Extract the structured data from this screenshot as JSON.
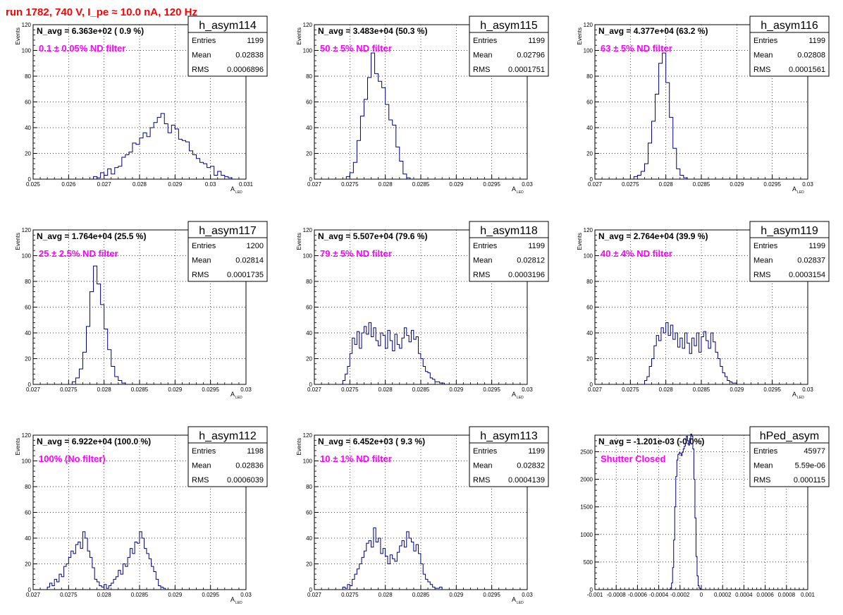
{
  "run_title": "run 1782,   740 V, I_pe ≈ 10.0 nA, 120 Hz",
  "colors": {
    "title": "#ff0000",
    "annotation": "#ff00ff",
    "histogram": "#000080",
    "grid": "#000000"
  },
  "chart_data": [
    {
      "type": "histogram",
      "title": "h_asym114",
      "nav_text": "N_avg = 6.363e+02 ( 0.9 %)",
      "annotation": "0.1 ± 0.05% ND filter",
      "stats": {
        "labels": [
          "Entries",
          "Mean",
          "RMS"
        ],
        "values": [
          "1199",
          "0.02838",
          "0.0006896"
        ]
      },
      "xlabel": "A",
      "xlabel_sub": "LED",
      "ylabel": "Events",
      "xlim": [
        0.025,
        0.031
      ],
      "ylim": [
        0,
        120
      ],
      "xticks": [
        0.025,
        0.026,
        0.027,
        0.028,
        0.029,
        0.03,
        0.031
      ],
      "xtick_labels": [
        "0.025",
        "0.026",
        "0.027",
        "0.028",
        "0.029",
        "0.03",
        "0.031"
      ],
      "yticks": [
        0,
        20,
        40,
        60,
        80,
        100,
        120
      ],
      "ytick_labels": [
        "0",
        "20",
        "40",
        "60",
        "80",
        "100",
        "120"
      ],
      "grid": true,
      "bin_start": 0.0267,
      "bin_width": 0.0001,
      "counts": [
        2,
        1,
        5,
        3,
        8,
        4,
        9,
        10,
        17,
        19,
        21,
        28,
        27,
        32,
        36,
        33,
        40,
        44,
        48,
        51,
        43,
        36,
        42,
        39,
        31,
        30,
        29,
        22,
        19,
        16,
        13,
        12,
        9,
        10,
        3,
        6,
        3,
        2,
        1
      ]
    },
    {
      "type": "histogram",
      "title": "h_asym115",
      "nav_text": "N_avg = 3.483e+04 (50.3 %)",
      "annotation": "50 ± 5% ND filter",
      "stats": {
        "labels": [
          "Entries",
          "Mean",
          "RMS"
        ],
        "values": [
          "1199",
          "0.02796",
          "0.0001751"
        ]
      },
      "xlabel": "A",
      "xlabel_sub": "LED",
      "ylabel": "Events",
      "xlim": [
        0.027,
        0.03
      ],
      "ylim": [
        0,
        120
      ],
      "xticks": [
        0.027,
        0.0275,
        0.028,
        0.0285,
        0.029,
        0.0295,
        0.03
      ],
      "xtick_labels": [
        "0.027",
        "0.0275",
        "0.028",
        "0.0285",
        "0.029",
        "0.0295",
        "0.03"
      ],
      "yticks": [
        0,
        20,
        40,
        60,
        80,
        100,
        120
      ],
      "ytick_labels": [
        "0",
        "20",
        "40",
        "60",
        "80",
        "100",
        "120"
      ],
      "grid": true,
      "bin_start": 0.02745,
      "bin_width": 5e-05,
      "counts": [
        2,
        5,
        13,
        30,
        49,
        62,
        79,
        98,
        82,
        76,
        71,
        58,
        46,
        42,
        25,
        14,
        4,
        1
      ]
    },
    {
      "type": "histogram",
      "title": "h_asym116",
      "nav_text": "N_avg = 4.377e+04 (63.2 %)",
      "annotation": "63 ± 5% ND filter",
      "stats": {
        "labels": [
          "Entries",
          "Mean",
          "RMS"
        ],
        "values": [
          "1199",
          "0.02808",
          "0.0001561"
        ]
      },
      "xlabel": "A",
      "xlabel_sub": "LED",
      "ylabel": "Events",
      "xlim": [
        0.027,
        0.03
      ],
      "ylim": [
        0,
        120
      ],
      "xticks": [
        0.027,
        0.0275,
        0.028,
        0.0285,
        0.029,
        0.0295,
        0.03
      ],
      "xtick_labels": [
        "0.027",
        "0.0275",
        "0.028",
        "0.0285",
        "0.029",
        "0.0295",
        "0.03"
      ],
      "yticks": [
        0,
        20,
        40,
        60,
        80,
        100,
        120
      ],
      "ytick_labels": [
        "0",
        "20",
        "40",
        "60",
        "80",
        "100",
        "120"
      ],
      "grid": true,
      "bin_start": 0.02755,
      "bin_width": 5e-05,
      "counts": [
        2,
        3,
        6,
        12,
        28,
        45,
        66,
        90,
        98,
        75,
        48,
        24,
        8,
        3,
        1
      ]
    },
    {
      "type": "histogram",
      "title": "h_asym117",
      "nav_text": "N_avg = 1.764e+04 (25.5 %)",
      "annotation": "25 ± 2.5% ND filter",
      "stats": {
        "labels": [
          "Entries",
          "Mean",
          "RMS"
        ],
        "values": [
          "1200",
          "0.02814",
          "0.0001735"
        ]
      },
      "xlabel": "A",
      "xlabel_sub": "LED",
      "ylabel": "Events",
      "xlim": [
        0.027,
        0.03
      ],
      "ylim": [
        0,
        120
      ],
      "xticks": [
        0.027,
        0.0275,
        0.028,
        0.0285,
        0.029,
        0.0295,
        0.03
      ],
      "xtick_labels": [
        "0.027",
        "0.0275",
        "0.028",
        "0.0285",
        "0.029",
        "0.0295",
        "0.03"
      ],
      "yticks": [
        0,
        20,
        40,
        60,
        80,
        100,
        120
      ],
      "ytick_labels": [
        "0",
        "20",
        "40",
        "60",
        "80",
        "100",
        "120"
      ],
      "grid": true,
      "bin_start": 0.02755,
      "bin_width": 5e-05,
      "counts": [
        2,
        5,
        12,
        25,
        45,
        72,
        92,
        78,
        62,
        43,
        27,
        14,
        6,
        3,
        1
      ]
    },
    {
      "type": "histogram",
      "title": "h_asym118",
      "nav_text": "N_avg = 5.507e+04 (79.6 %)",
      "annotation": "79 ± 5% ND filter",
      "stats": {
        "labels": [
          "Entries",
          "Mean",
          "RMS"
        ],
        "values": [
          "1199",
          "0.02812",
          "0.0003196"
        ]
      },
      "xlabel": "A",
      "xlabel_sub": "LED",
      "ylabel": "Events",
      "xlim": [
        0.027,
        0.03
      ],
      "ylim": [
        0,
        120
      ],
      "xticks": [
        0.027,
        0.0275,
        0.028,
        0.0285,
        0.029,
        0.0295,
        0.03
      ],
      "xtick_labels": [
        "0.027",
        "0.0275",
        "0.028",
        "0.0285",
        "0.029",
        "0.0295",
        "0.03"
      ],
      "yticks": [
        0,
        20,
        40,
        60,
        80,
        100,
        120
      ],
      "ytick_labels": [
        "0",
        "20",
        "40",
        "60",
        "80",
        "100",
        "120"
      ],
      "grid": true,
      "bin_start": 0.0274,
      "bin_width": 3.33e-05,
      "counts": [
        3,
        8,
        14,
        24,
        36,
        31,
        41,
        28,
        40,
        45,
        39,
        48,
        37,
        44,
        34,
        30,
        40,
        38,
        28,
        42,
        34,
        26,
        39,
        31,
        28,
        36,
        44,
        38,
        33,
        42,
        35,
        37,
        24,
        20,
        14,
        10,
        9,
        5,
        4,
        2,
        2,
        1,
        1
      ]
    },
    {
      "type": "histogram",
      "title": "h_asym119",
      "nav_text": "N_avg = 2.764e+04 (39.9 %)",
      "annotation": "40 ± 4% ND filter",
      "stats": {
        "labels": [
          "Entries",
          "Mean",
          "RMS"
        ],
        "values": [
          "1199",
          "0.02837",
          "0.0003154"
        ]
      },
      "xlabel": "A",
      "xlabel_sub": "LED",
      "ylabel": "Events",
      "xlim": [
        0.027,
        0.03
      ],
      "ylim": [
        0,
        120
      ],
      "xticks": [
        0.027,
        0.0275,
        0.028,
        0.0285,
        0.029,
        0.0295,
        0.03
      ],
      "xtick_labels": [
        "0.027",
        "0.0275",
        "0.028",
        "0.0285",
        "0.029",
        "0.0295",
        "0.03"
      ],
      "yticks": [
        0,
        20,
        40,
        60,
        80,
        100,
        120
      ],
      "ytick_labels": [
        "0",
        "20",
        "40",
        "60",
        "80",
        "100",
        "120"
      ],
      "grid": true,
      "bin_start": 0.0277,
      "bin_width": 3.33e-05,
      "counts": [
        3,
        6,
        14,
        20,
        30,
        38,
        34,
        44,
        40,
        48,
        38,
        46,
        35,
        40,
        29,
        36,
        28,
        40,
        32,
        24,
        36,
        30,
        40,
        25,
        37,
        41,
        34,
        28,
        40,
        33,
        25,
        20,
        14,
        9,
        6,
        3,
        2,
        1,
        1
      ]
    },
    {
      "type": "histogram",
      "title": "h_asym112",
      "nav_text": "N_avg = 6.922e+04 (100.0 %)",
      "annotation": "100% (No filter)",
      "stats": {
        "labels": [
          "Entries",
          "Mean",
          "RMS"
        ],
        "values": [
          "1198",
          "0.02836",
          "0.0006039"
        ]
      },
      "xlabel": "A",
      "xlabel_sub": "LED",
      "ylabel": "Events",
      "xlim": [
        0.027,
        0.03
      ],
      "ylim": [
        0,
        120
      ],
      "xticks": [
        0.027,
        0.0275,
        0.028,
        0.0285,
        0.029,
        0.0295,
        0.03
      ],
      "xtick_labels": [
        "0.027",
        "0.0275",
        "0.028",
        "0.0285",
        "0.029",
        "0.0295",
        "0.03"
      ],
      "yticks": [
        0,
        20,
        40,
        60,
        80,
        100,
        120
      ],
      "ytick_labels": [
        "0",
        "20",
        "40",
        "60",
        "80",
        "100",
        "120"
      ],
      "grid": true,
      "bin_start": 0.0272,
      "bin_width": 3.33e-05,
      "counts": [
        2,
        5,
        3,
        8,
        6,
        12,
        10,
        18,
        20,
        25,
        30,
        28,
        35,
        37,
        32,
        45,
        40,
        30,
        25,
        17,
        8,
        6,
        3,
        2,
        4,
        1,
        3,
        5,
        8,
        10,
        15,
        12,
        20,
        18,
        25,
        32,
        28,
        37,
        36,
        45,
        40,
        32,
        28,
        24,
        18,
        14,
        8,
        3,
        2,
        1
      ]
    },
    {
      "type": "histogram",
      "title": "h_asym113",
      "nav_text": "N_avg = 6.452e+03 ( 9.3 %)",
      "annotation": "10 ± 1% ND filter",
      "stats": {
        "labels": [
          "Entries",
          "Mean",
          "RMS"
        ],
        "values": [
          "1199",
          "0.02832",
          "0.0004139"
        ]
      },
      "xlabel": "A",
      "xlabel_sub": "LED",
      "ylabel": "Events",
      "xlim": [
        0.027,
        0.03
      ],
      "ylim": [
        0,
        120
      ],
      "xticks": [
        0.027,
        0.0275,
        0.028,
        0.0285,
        0.029,
        0.0295,
        0.03
      ],
      "xtick_labels": [
        "0.027",
        "0.0275",
        "0.028",
        "0.0285",
        "0.029",
        "0.0295",
        "0.03"
      ],
      "yticks": [
        0,
        20,
        40,
        60,
        80,
        100,
        120
      ],
      "ytick_labels": [
        "0",
        "20",
        "40",
        "60",
        "80",
        "100",
        "120"
      ],
      "grid": true,
      "bin_start": 0.0274,
      "bin_width": 3.33e-05,
      "counts": [
        2,
        1,
        4,
        3,
        8,
        12,
        16,
        20,
        25,
        30,
        36,
        38,
        33,
        48,
        37,
        40,
        28,
        32,
        26,
        20,
        27,
        24,
        22,
        29,
        34,
        38,
        33,
        45,
        40,
        37,
        30,
        35,
        28,
        20,
        12,
        8,
        6,
        4,
        2,
        1,
        1,
        2
      ]
    },
    {
      "type": "histogram",
      "title": "hPed_asym",
      "nav_text": "N_avg = -1.201e-03 (-0.0%)",
      "annotation": "Shutter Closed",
      "stats": {
        "labels": [
          "Entries",
          "Mean",
          "RMS"
        ],
        "values": [
          "45977",
          "5.59e-06",
          "0.000115"
        ]
      },
      "xlabel": "",
      "xlabel_sub": "",
      "ylabel": "",
      "xlim": [
        -0.001,
        0.001
      ],
      "ylim": [
        0,
        2800
      ],
      "xticks": [
        -0.001,
        -0.0008,
        -0.0006,
        -0.0004,
        -0.0002,
        0,
        0.0002,
        0.0004,
        0.0006,
        0.0008,
        0.001
      ],
      "xtick_labels": [
        "-0.001",
        "-0.0008",
        "-0.0006",
        "-0.0004",
        "-0.0002",
        "0",
        "0.0002",
        "0.0004",
        "0.0006",
        "0.0008",
        "0.001"
      ],
      "yticks": [
        0,
        500,
        1000,
        1500,
        2000,
        2500
      ],
      "ytick_labels": [
        "0",
        "500",
        "1000",
        "1500",
        "2000",
        "2500"
      ],
      "grid": true,
      "bin_start": -0.0003,
      "bin_width": 1e-05,
      "counts": [
        5,
        30,
        120,
        400,
        900,
        1500,
        2050,
        2350,
        2450,
        2480,
        2470,
        2430,
        2490,
        2550,
        2600,
        2650,
        2780,
        2700,
        2620,
        2740,
        2820,
        2780,
        2550,
        2000,
        1300,
        600,
        250,
        70,
        25,
        10,
        3,
        1
      ]
    }
  ]
}
